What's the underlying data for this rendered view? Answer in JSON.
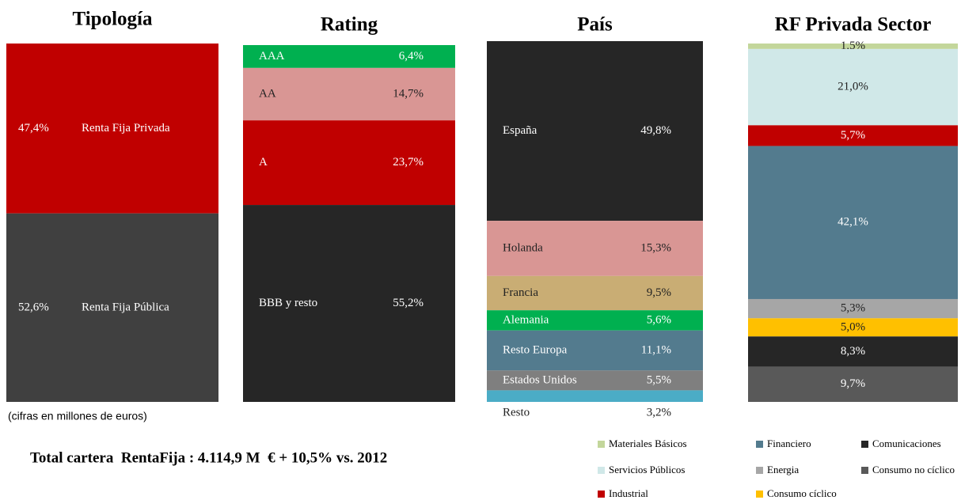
{
  "chart_data": [
    {
      "type": "stacked_bar",
      "title": "Tipología",
      "categories": [
        "Renta Fija Privada",
        "Renta Fija Pública"
      ],
      "values": [
        47.4,
        52.6
      ],
      "value_labels": [
        "47,4%",
        "52,6%"
      ],
      "colors": [
        "#c00000",
        "#404040"
      ]
    },
    {
      "type": "stacked_bar",
      "title": "Rating",
      "categories": [
        "AAA",
        "AA",
        "A",
        "BBB  y resto"
      ],
      "values": [
        6.4,
        14.7,
        23.7,
        55.2
      ],
      "value_labels": [
        "6,4%",
        "14,7%",
        "23,7%",
        "55,2%"
      ],
      "colors": [
        "#00b050",
        "#d99694",
        "#c00000",
        "#262626"
      ]
    },
    {
      "type": "stacked_bar",
      "title": "País",
      "categories": [
        "España",
        "Holanda",
        "Francia",
        "Alemania",
        "Resto Europa",
        "Estados Unidos",
        "Resto"
      ],
      "values": [
        49.8,
        15.3,
        9.5,
        5.6,
        11.1,
        5.5,
        3.2
      ],
      "value_labels": [
        "49,8%",
        "15,3%",
        "9,5%",
        "5,6%",
        "11,1%",
        "5,5%",
        "3,2%"
      ],
      "colors": [
        "#262626",
        "#d99694",
        "#c9ad74",
        "#00b050",
        "#537b8e",
        "#7f7f7f",
        "#4bacc6"
      ]
    },
    {
      "type": "stacked_bar",
      "title": "RF Privada Sector",
      "legend": true,
      "categories": [
        "Materiales Básicos",
        "Servicios Públicos",
        "Industrial",
        "Financiero",
        "Energia",
        "Consumo cíclico",
        "Comunicaciones",
        "Consumo no cíclico"
      ],
      "values": [
        1.5,
        21.0,
        5.7,
        42.1,
        5.3,
        5.0,
        8.3,
        9.7
      ],
      "value_labels": [
        "1,5%",
        "21,0%",
        "5,7%",
        "42,1%",
        "5,3%",
        "5,0%",
        "8,3%",
        "9,7%"
      ],
      "colors": [
        "#c3d69b",
        "#d0e8e8",
        "#c00000",
        "#537b8e",
        "#a6a6a6",
        "#ffc000",
        "#262626",
        "#595959"
      ]
    }
  ],
  "footnote": "(cifras en millones de euros)",
  "summary": "Total cartera  RentaFija : 4.114,9 M  € + 10,5% vs. 2012"
}
